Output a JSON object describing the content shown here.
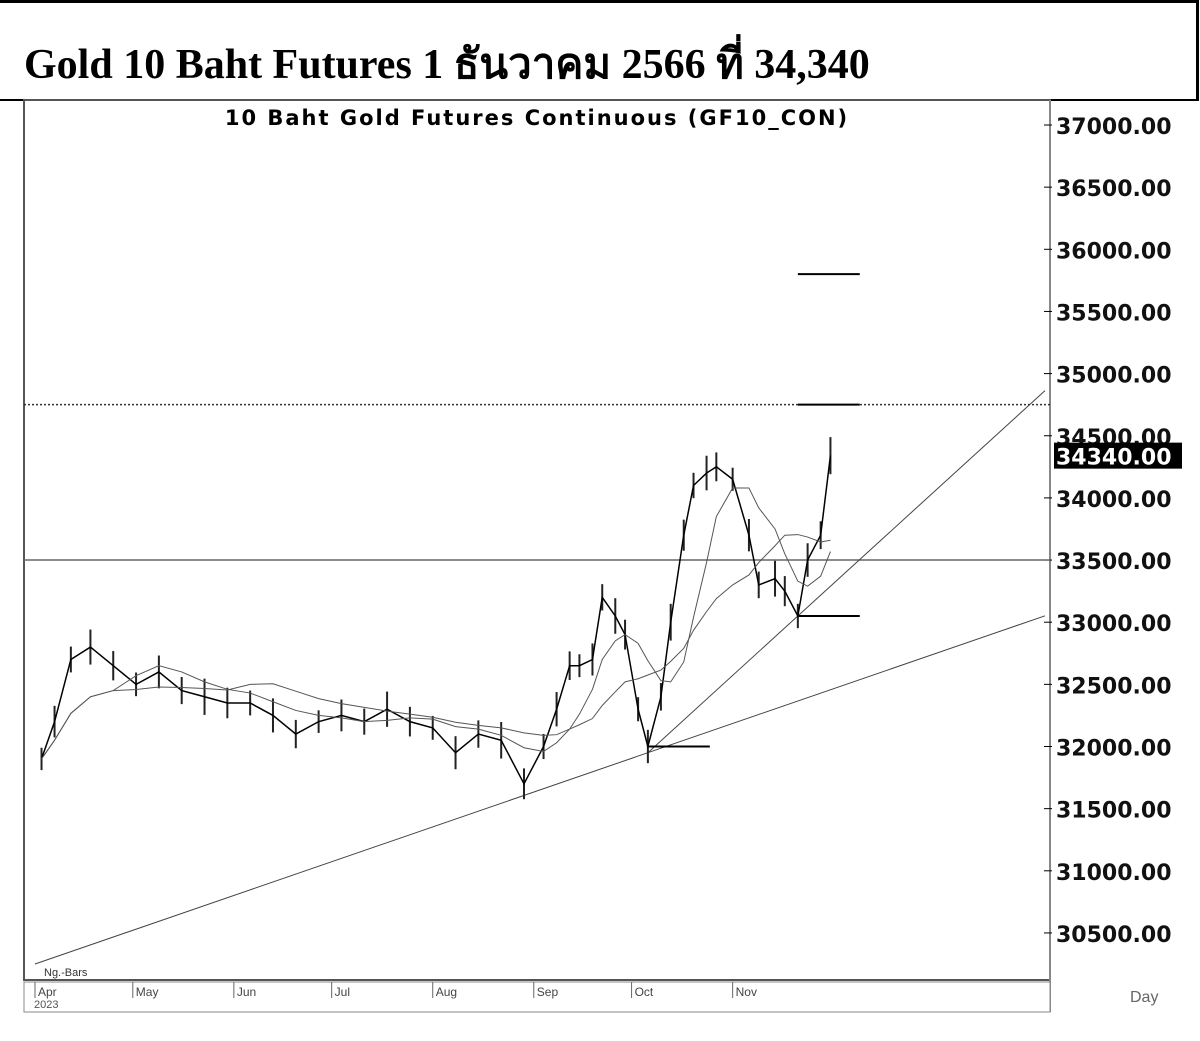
{
  "header": {
    "title": "Gold 10 Baht Futures 1 ธันวาคม 2566 ที่ 34,340"
  },
  "chart_data": {
    "type": "line",
    "title": "10 Baht Gold Futures Continuous (GF10_CON)",
    "ylim": [
      30250,
      37100
    ],
    "y_ticks": [
      "37000.00",
      "36500.00",
      "36000.00",
      "35500.00",
      "35000.00",
      "34500.00",
      "34000.00",
      "33500.00",
      "33000.00",
      "32500.00",
      "32000.00",
      "31500.00",
      "31000.00",
      "30500.00"
    ],
    "x_ticks": [
      [
        "2023-04-01",
        "Apr"
      ],
      [
        "2023-05-01",
        "May"
      ],
      [
        "2023-06-01",
        "Jun"
      ],
      [
        "2023-07-01",
        "Jul"
      ],
      [
        "2023-08-01",
        "Aug"
      ],
      [
        "2023-09-01",
        "Sep"
      ],
      [
        "2023-10-01",
        "Oct"
      ],
      [
        "2023-11-01",
        "Nov"
      ]
    ],
    "year_label": "2023",
    "bars_label": "Ng.-Bars",
    "period_label": "Day",
    "last_price": "34340.00",
    "grid": false,
    "series": [
      {
        "values": [
          [
            "2023-04-03",
            31900
          ],
          [
            "2023-04-07",
            32200
          ],
          [
            "2023-04-12",
            32700
          ],
          [
            "2023-04-18",
            32800
          ],
          [
            "2023-04-25",
            32650
          ],
          [
            "2023-05-02",
            32500
          ],
          [
            "2023-05-09",
            32600
          ],
          [
            "2023-05-16",
            32450
          ],
          [
            "2023-05-23",
            32400
          ],
          [
            "2023-05-30",
            32350
          ],
          [
            "2023-06-06",
            32350
          ],
          [
            "2023-06-13",
            32250
          ],
          [
            "2023-06-20",
            32100
          ],
          [
            "2023-06-27",
            32200
          ],
          [
            "2023-07-04",
            32250
          ],
          [
            "2023-07-11",
            32200
          ],
          [
            "2023-07-18",
            32300
          ],
          [
            "2023-07-25",
            32200
          ],
          [
            "2023-08-01",
            32150
          ],
          [
            "2023-08-08",
            31950
          ],
          [
            "2023-08-15",
            32100
          ],
          [
            "2023-08-22",
            32050
          ],
          [
            "2023-08-29",
            31700
          ],
          [
            "2023-09-04",
            32000
          ],
          [
            "2023-09-08",
            32300
          ],
          [
            "2023-09-12",
            32650
          ],
          [
            "2023-09-15",
            32650
          ],
          [
            "2023-09-19",
            32700
          ],
          [
            "2023-09-22",
            33200
          ],
          [
            "2023-09-26",
            33050
          ],
          [
            "2023-09-29",
            32900
          ],
          [
            "2023-10-03",
            32300
          ],
          [
            "2023-10-06",
            32000
          ],
          [
            "2023-10-10",
            32400
          ],
          [
            "2023-10-13",
            33000
          ],
          [
            "2023-10-17",
            33700
          ],
          [
            "2023-10-20",
            34100
          ],
          [
            "2023-10-24",
            34200
          ],
          [
            "2023-10-27",
            34250
          ],
          [
            "2023-11-01",
            34150
          ],
          [
            "2023-11-06",
            33700
          ],
          [
            "2023-11-09",
            33300
          ],
          [
            "2023-11-14",
            33350
          ],
          [
            "2023-11-17",
            33250
          ],
          [
            "2023-11-21",
            33050
          ],
          [
            "2023-11-24",
            33500
          ],
          [
            "2023-11-28",
            33700
          ],
          [
            "2023-12-01",
            34340
          ]
        ]
      }
    ],
    "horizontal_lines": [
      {
        "y": 34750,
        "style": "dotted"
      },
      {
        "y": 33500,
        "style": "solid"
      }
    ],
    "trendlines": [
      [
        [
          "2023-04-01",
          30250
        ],
        [
          "2023-10-06",
          31950
        ]
      ],
      [
        [
          "2023-10-06",
          31950
        ],
        [
          "2023-11-21",
          33050
        ]
      ]
    ],
    "level_marks": [
      {
        "y": 35800,
        "from": "2023-11-21",
        "to": "2023-12-10"
      },
      {
        "y": 34750,
        "from": "2023-11-21",
        "to": "2023-12-10"
      },
      {
        "y": 32000,
        "from": "2023-10-06",
        "to": "2023-10-25"
      },
      {
        "y": 33050,
        "from": "2023-11-21",
        "to": "2023-12-10"
      }
    ]
  }
}
